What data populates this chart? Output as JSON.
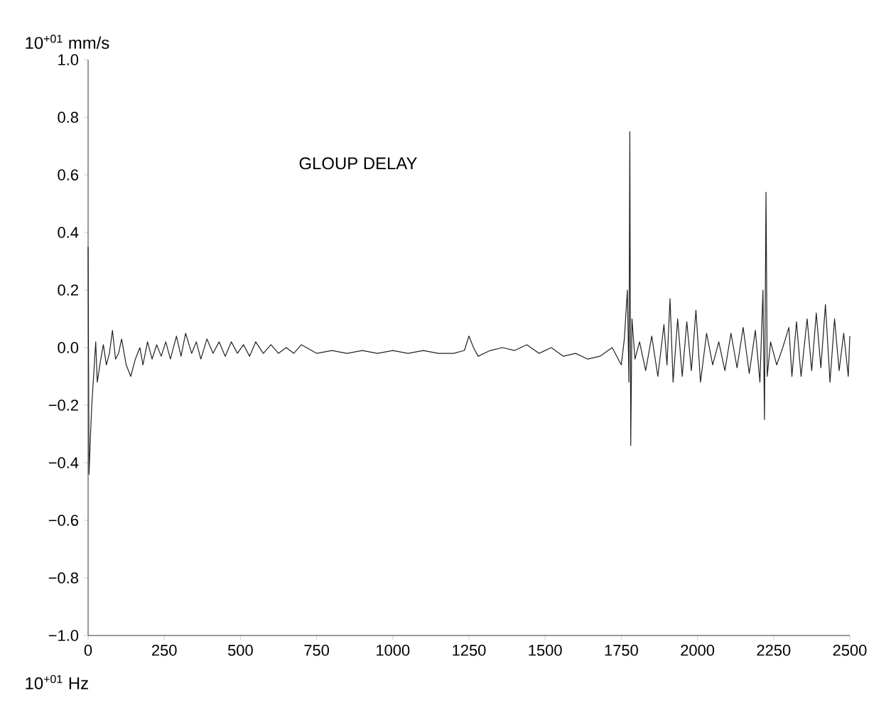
{
  "chart_data": {
    "type": "line",
    "xlabel": "10$^{+01}$ Hz",
    "ylabel": "10$^{+01}$ mm/s",
    "annotations": [
      "GLOUP DELAY"
    ],
    "xlim": [
      0,
      2500
    ],
    "ylim": [
      -1.0,
      1.0
    ],
    "xticks": [
      0,
      250,
      500,
      750,
      1000,
      1250,
      1500,
      1750,
      2000,
      2250,
      2500
    ],
    "yticks": [
      {
        "value": -1.0,
        "label": "−1.0"
      },
      {
        "value": -0.8,
        "label": "−0.8"
      },
      {
        "value": -0.6,
        "label": "−0.6"
      },
      {
        "value": -0.4,
        "label": "−0.4"
      },
      {
        "value": -0.2,
        "label": "−0.2"
      },
      {
        "value": 0.0,
        "label": "0.0"
      },
      {
        "value": 0.2,
        "label": "0.2"
      },
      {
        "value": 0.4,
        "label": "0.4"
      },
      {
        "value": 0.6,
        "label": "0.6"
      },
      {
        "value": 0.8,
        "label": "0.8"
      },
      {
        "value": 1.0,
        "label": "1.0"
      }
    ],
    "grid": false,
    "marker": "none",
    "line_style": "solid",
    "series": [
      {
        "color": "#222222",
        "x": [
          0,
          3,
          8,
          12,
          18,
          25,
          30,
          40,
          50,
          60,
          70,
          80,
          90,
          100,
          110,
          125,
          140,
          155,
          170,
          180,
          195,
          210,
          225,
          240,
          255,
          270,
          290,
          305,
          320,
          340,
          355,
          370,
          390,
          410,
          430,
          450,
          470,
          490,
          510,
          530,
          550,
          575,
          600,
          625,
          650,
          675,
          700,
          750,
          800,
          850,
          900,
          950,
          1000,
          1050,
          1100,
          1150,
          1200,
          1235,
          1250,
          1265,
          1280,
          1320,
          1360,
          1400,
          1440,
          1480,
          1520,
          1560,
          1600,
          1640,
          1680,
          1720,
          1750,
          1760,
          1770,
          1775,
          1778,
          1781,
          1785,
          1795,
          1810,
          1830,
          1850,
          1870,
          1890,
          1900,
          1910,
          1920,
          1935,
          1950,
          1965,
          1980,
          1995,
          2010,
          2030,
          2050,
          2070,
          2090,
          2110,
          2130,
          2150,
          2170,
          2190,
          2205,
          2215,
          2220,
          2225,
          2229,
          2240,
          2260,
          2280,
          2300,
          2310,
          2325,
          2340,
          2360,
          2375,
          2390,
          2405,
          2420,
          2435,
          2450,
          2465,
          2480,
          2495,
          2500
        ],
        "values": [
          0.35,
          -0.44,
          -0.3,
          -0.2,
          -0.1,
          0.02,
          -0.12,
          -0.05,
          0.01,
          -0.06,
          -0.02,
          0.06,
          -0.04,
          -0.02,
          0.03,
          -0.06,
          -0.1,
          -0.04,
          0.0,
          -0.06,
          0.02,
          -0.04,
          0.01,
          -0.03,
          0.02,
          -0.04,
          0.04,
          -0.03,
          0.05,
          -0.02,
          0.02,
          -0.04,
          0.03,
          -0.02,
          0.02,
          -0.03,
          0.02,
          -0.02,
          0.01,
          -0.03,
          0.02,
          -0.02,
          0.01,
          -0.02,
          0.0,
          -0.02,
          0.01,
          -0.02,
          -0.01,
          -0.02,
          -0.01,
          -0.02,
          -0.01,
          -0.02,
          -0.01,
          -0.02,
          -0.02,
          -0.01,
          0.04,
          0.0,
          -0.03,
          -0.01,
          0.0,
          -0.01,
          0.01,
          -0.02,
          0.0,
          -0.03,
          -0.02,
          -0.04,
          -0.03,
          0.0,
          -0.06,
          0.03,
          0.2,
          -0.12,
          0.75,
          -0.34,
          0.1,
          -0.04,
          0.02,
          -0.08,
          0.04,
          -0.1,
          0.08,
          -0.06,
          0.17,
          -0.12,
          0.1,
          -0.1,
          0.09,
          -0.08,
          0.13,
          -0.12,
          0.05,
          -0.06,
          0.02,
          -0.08,
          0.05,
          -0.07,
          0.07,
          -0.09,
          0.06,
          -0.12,
          0.2,
          -0.25,
          0.54,
          -0.1,
          0.02,
          -0.06,
          0.0,
          0.07,
          -0.1,
          0.09,
          -0.1,
          0.1,
          -0.08,
          0.12,
          -0.07,
          0.15,
          -0.12,
          0.1,
          -0.08,
          0.05,
          -0.1,
          0.04
        ]
      }
    ]
  }
}
